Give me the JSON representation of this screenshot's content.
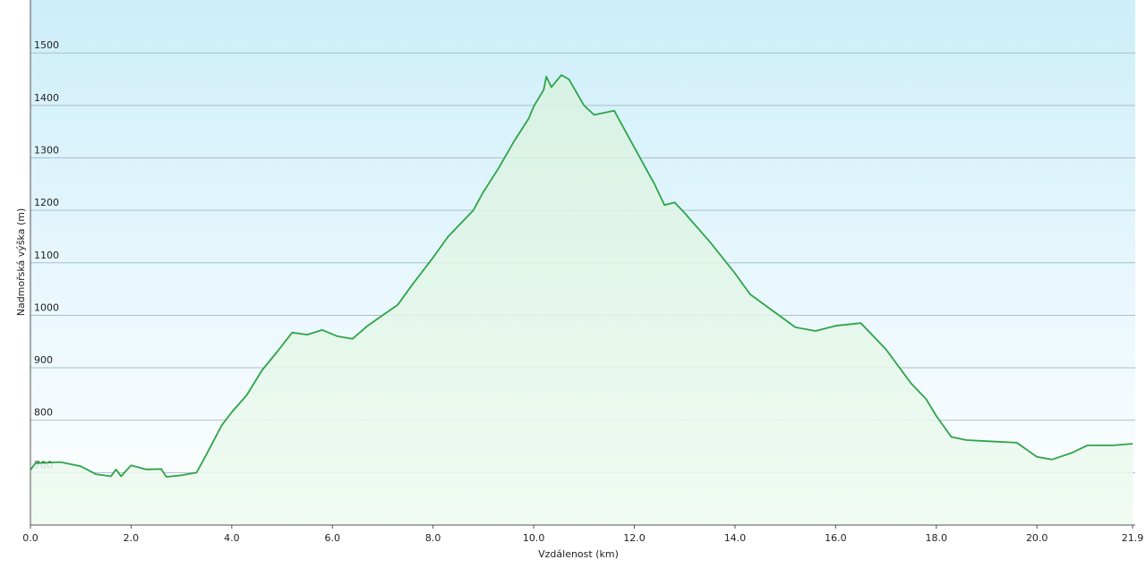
{
  "chart_data": {
    "type": "area",
    "x_label": "Vzdálenost  (km)",
    "y_label": "Nadmořská výška (m)",
    "color": "#2ea44a",
    "grid": true,
    "xlim": [
      0,
      21.9
    ],
    "ylim": [
      600,
      1600
    ],
    "xticks": [
      {
        "value": 0,
        "label": "0.0"
      },
      {
        "value": 2,
        "label": "2.0"
      },
      {
        "value": 4,
        "label": "4.0"
      },
      {
        "value": 6,
        "label": "6.0"
      },
      {
        "value": 8,
        "label": "8.0"
      },
      {
        "value": 10,
        "label": "10.0"
      },
      {
        "value": 12,
        "label": "12.0"
      },
      {
        "value": 14,
        "label": "14.0"
      },
      {
        "value": 16,
        "label": "16.0"
      },
      {
        "value": 18,
        "label": "18.0"
      },
      {
        "value": 20,
        "label": "20.0"
      },
      21.9
    ],
    "yticks": [
      700,
      800,
      900,
      1000,
      1100,
      1200,
      1300,
      1400,
      1500
    ],
    "x": [
      0.0,
      0.1,
      0.6,
      1.0,
      1.3,
      1.6,
      1.7,
      1.8,
      2.0,
      2.3,
      2.6,
      2.7,
      3.0,
      3.3,
      3.5,
      3.8,
      4.0,
      4.3,
      4.6,
      4.9,
      5.2,
      5.5,
      5.8,
      6.1,
      6.4,
      6.7,
      7.0,
      7.3,
      7.6,
      8.0,
      8.3,
      8.6,
      8.8,
      9.0,
      9.3,
      9.6,
      9.9,
      10.0,
      10.2,
      10.25,
      10.35,
      10.55,
      10.7,
      11.0,
      11.2,
      11.6,
      12.0,
      12.4,
      12.6,
      12.8,
      13.0,
      13.5,
      14.0,
      14.3,
      14.8,
      15.2,
      15.6,
      16.0,
      16.5,
      17.0,
      17.5,
      17.8,
      18.0,
      18.3,
      18.6,
      19.0,
      19.6,
      20.0,
      20.3,
      20.7,
      21.0,
      21.5,
      21.9
    ],
    "values": [
      705,
      718,
      720,
      712,
      697,
      693,
      706,
      693,
      714,
      706,
      707,
      692,
      695,
      700,
      735,
      790,
      815,
      848,
      895,
      930,
      967,
      963,
      972,
      960,
      955,
      980,
      1000,
      1020,
      1060,
      1110,
      1150,
      1180,
      1200,
      1235,
      1280,
      1330,
      1375,
      1398,
      1430,
      1455,
      1435,
      1458,
      1450,
      1400,
      1382,
      1390,
      1320,
      1250,
      1210,
      1215,
      1195,
      1140,
      1080,
      1040,
      1005,
      977,
      970,
      980,
      985,
      935,
      870,
      840,
      808,
      768,
      762,
      760,
      757,
      730,
      725,
      738,
      752,
      752,
      755
    ]
  }
}
